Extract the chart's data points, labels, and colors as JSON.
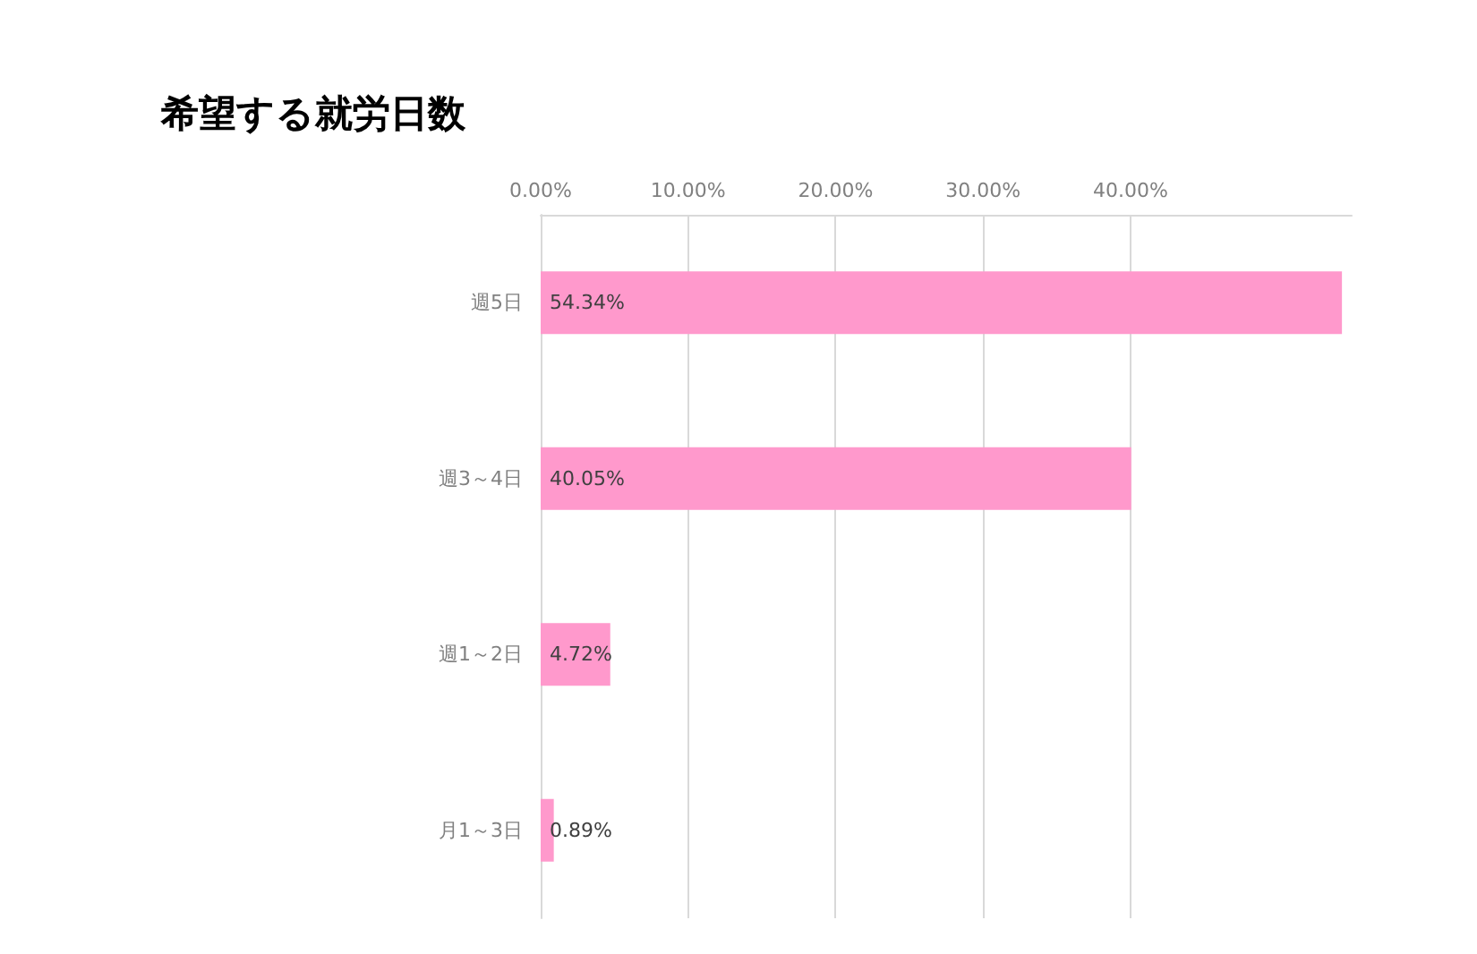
{
  "chart_data": {
    "type": "bar",
    "orientation": "horizontal",
    "title": "希望する就労日数",
    "categories": [
      "週5日",
      "週3～4日",
      "週1～2日",
      "月1～3日"
    ],
    "values": [
      54.34,
      40.05,
      4.72,
      0.89
    ],
    "value_labels": [
      "54.34%",
      "40.05%",
      "4.72%",
      "0.89%"
    ],
    "color": "#ff99cc",
    "xlim": [
      0,
      55
    ],
    "xticks": [
      {
        "value": 0,
        "label": "0.00%"
      },
      {
        "value": 10,
        "label": "10.00%"
      },
      {
        "value": 20,
        "label": "20.00%"
      },
      {
        "value": 30,
        "label": "30.00%"
      },
      {
        "value": 40,
        "label": "40.00%"
      }
    ],
    "grid": "x"
  }
}
